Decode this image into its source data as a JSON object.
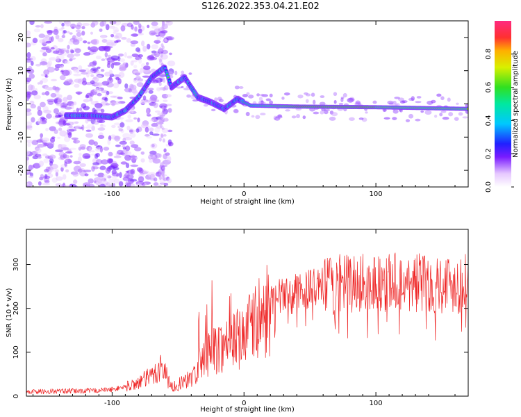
{
  "title": "S126.2022.353.04.21.E02",
  "chart_data": [
    {
      "type": "heatmap",
      "xlabel": "Height of straight line (km)",
      "ylabel": "Frequency (Hz)",
      "xlim": [
        -165,
        170
      ],
      "ylim": [
        -25,
        25
      ],
      "xticks": [
        -100,
        0,
        100
      ],
      "yticks": [
        -20,
        -10,
        0,
        10,
        20
      ],
      "colorbar": {
        "label": "Normalized spectral amplitude",
        "ticks": [
          "0.0",
          "0.2",
          "0.4",
          "0.6",
          "0.8"
        ],
        "range": [
          0,
          1
        ]
      },
      "ridge": [
        {
          "x": -130,
          "y": -3.5
        },
        {
          "x": -115,
          "y": -3.5
        },
        {
          "x": -100,
          "y": -4
        },
        {
          "x": -90,
          "y": -2
        },
        {
          "x": -80,
          "y": 2
        },
        {
          "x": -70,
          "y": 8
        },
        {
          "x": -60,
          "y": 11
        },
        {
          "x": -55,
          "y": 5
        },
        {
          "x": -45,
          "y": 8
        },
        {
          "x": -35,
          "y": 2
        },
        {
          "x": -25,
          "y": 0.5
        },
        {
          "x": -15,
          "y": -1.5
        },
        {
          "x": -5,
          "y": 1.5
        },
        {
          "x": 5,
          "y": -0.5
        },
        {
          "x": 40,
          "y": -0.8
        },
        {
          "x": 100,
          "y": -1
        },
        {
          "x": 170,
          "y": -1.5
        }
      ]
    },
    {
      "type": "line",
      "xlabel": "Height of straight line (km)",
      "ylabel": "SNR (10 * v/v)",
      "xlim": [
        -165,
        170
      ],
      "ylim": [
        0,
        380
      ],
      "xticks": [
        -100,
        0,
        100
      ],
      "yticks": [
        0,
        100,
        200,
        300
      ],
      "series": [
        {
          "color": "#ee2222",
          "envelope": [
            {
              "x": -165,
              "y": 10
            },
            {
              "x": -120,
              "y": 12
            },
            {
              "x": -100,
              "y": 15
            },
            {
              "x": -85,
              "y": 25
            },
            {
              "x": -70,
              "y": 45
            },
            {
              "x": -62,
              "y": 70
            },
            {
              "x": -55,
              "y": 20
            },
            {
              "x": -40,
              "y": 40
            },
            {
              "x": -30,
              "y": 90
            },
            {
              "x": -20,
              "y": 110
            },
            {
              "x": -5,
              "y": 130
            },
            {
              "x": 10,
              "y": 170
            },
            {
              "x": 25,
              "y": 220
            },
            {
              "x": 50,
              "y": 245
            },
            {
              "x": 75,
              "y": 255
            },
            {
              "x": 100,
              "y": 260
            },
            {
              "x": 130,
              "y": 260
            },
            {
              "x": 170,
              "y": 255
            }
          ]
        }
      ]
    }
  ]
}
